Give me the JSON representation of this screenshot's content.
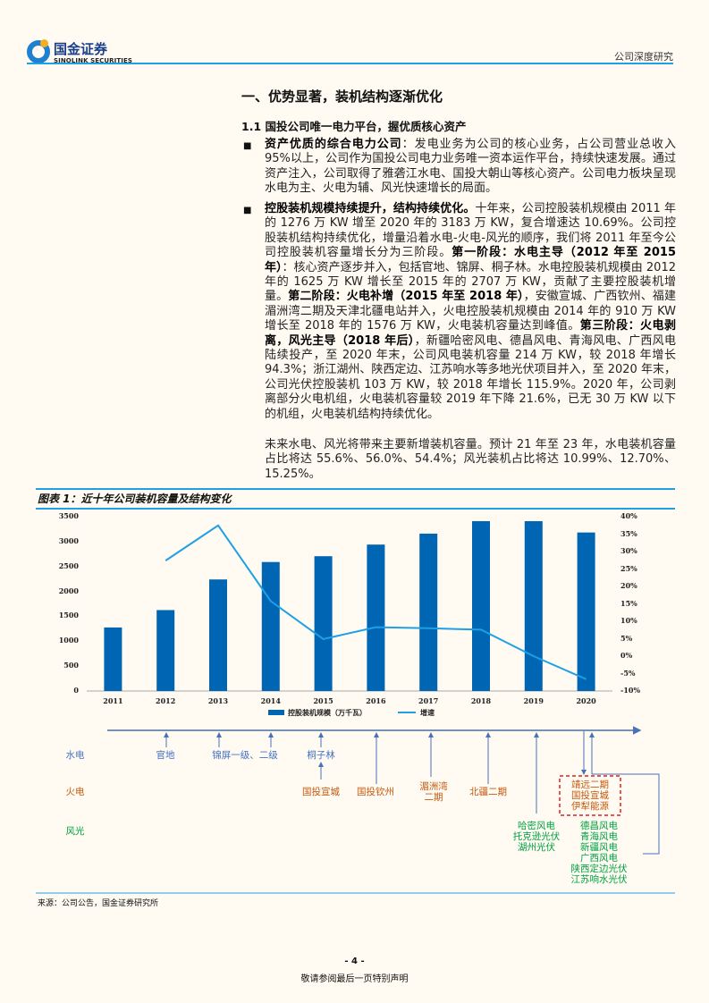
{
  "header": {
    "logo_cn": "国金证券",
    "logo_en": "SINOLINK SECURITIES",
    "right": "公司深度研究"
  },
  "section_title": "一、优势显著，装机结构逐渐优化",
  "subsection_title": "1.1 国投公司唯一电力平台，握优质核心资产",
  "bullets": [
    {
      "bold": "资产优质的综合电力公司",
      "text": "：发电业务为公司的核心业务，占公司营业总收入 95%以上，公司作为国投公司电力业务唯一资本运作平台，持续快速发展。通过资产注入，公司取得了雅砻江水电、国投大朝山等核心资产。公司电力板块呈现水电为主、火电为辅、风光快速增长的局面。"
    },
    {
      "bold": "控股装机规模持续提升，结构持续优化。",
      "t1": "十年来，公司控股装机规模由 2011 年的 1276 万 KW 增至 2020 年的 3183 万 KW，复合增速达 10.69%。公司控股装机结构持续优化，增量沿着水电-火电-风光的顺序，我们将 2011 年至今公司控股装机容量增长分为三阶段。",
      "b2": "第一阶段：水电主导（2012 年至 2015 年）",
      "t2": "：核心资产逐步并入，包括官地、锦屏、桐子林。水电控股装机规模由 2012 年的 1625 万 KW 增长至 2015 年的 2707 万 KW，贡献了主要控股装机增量。",
      "b3": "第二阶段：火电补增（2015 年至 2018 年）",
      "t3": "，安徽宣城、广西钦州、福建湄洲湾二期及天津北疆电站并入，火电控股装机规模由 2014 年的 910 万 KW 增长至 2018 年的 1576 万 KW，火电装机容量达到峰值。",
      "b4": "第三阶段：火电剥离，风光主导（2018 年后）",
      "t4": "，新疆哈密风电、德昌风电、青海风电、广西风电陆续投产，至 2020 年末，公司风电装机容量 214 万 KW，较 2018 年增长 94.3%；浙江湖州、陕西定边、江苏响水等多地光伏项目并入，至 2020 年末，公司光伏控股装机 103 万 KW，较 2018 年增长 115.9%。2020 年，公司剥离部分火电机组，火电装机容量较 2019 年下降 21.6%，已无 30 万 KW 以下的机组，火电装机结构持续优化。"
    }
  ],
  "closing_para": "未来水电、风光将带来主要新增装机容量。预计 21 年至 23 年，水电装机容量占比将达 55.6%、56.0%、54.4%；风光装机占比将达 10.99%、12.70%、15.25%。",
  "chart_caption": "图表 1：近十年公司装机容量及结构变化",
  "chart_data": {
    "type": "bar+line",
    "categories": [
      "2011",
      "2012",
      "2013",
      "2014",
      "2015",
      "2016",
      "2017",
      "2018",
      "2019",
      "2020"
    ],
    "series": [
      {
        "name": "控股装机规模（万千瓦）",
        "type": "bar",
        "axis": "left",
        "color": "#0066b3",
        "values": [
          1276,
          1625,
          2240,
          2590,
          2707,
          2940,
          3160,
          3410,
          3410,
          3183
        ]
      },
      {
        "name": "增速",
        "type": "line",
        "axis": "right",
        "color": "#1ea0e6",
        "values": [
          null,
          27.4,
          37.5,
          15.8,
          4.9,
          8.3,
          8.0,
          7.6,
          0.0,
          -6.6
        ]
      }
    ],
    "ylim_left": [
      0,
      3500
    ],
    "yticks_left": [
      "0",
      "500",
      "1000",
      "1500",
      "2000",
      "2500",
      "3000",
      "3500"
    ],
    "ylim_right": [
      -10,
      40
    ],
    "yticks_right": [
      "-10%",
      "-5%",
      "0%",
      "5%",
      "10%",
      "15%",
      "20%",
      "25%",
      "30%",
      "35%",
      "40%"
    ],
    "legend_position": "bottom",
    "grid": false
  },
  "timeline": {
    "rows": {
      "hydro": "水电",
      "thermal": "火电",
      "wind_solar": "风光"
    },
    "hydro": [
      "官地",
      "锦屏一级、二级",
      "桐子林"
    ],
    "thermal": [
      "国投宣城",
      "国投钦州",
      "湄洲湾",
      "二期",
      "北疆二期"
    ],
    "divested": [
      "靖远二期",
      "国投宣城",
      "伊犁能源"
    ],
    "wind_a": [
      "哈密风电",
      "托克逊光伏",
      "湖州光伏"
    ],
    "wind_b": [
      "德昌风电",
      "青海风电",
      "新疆风电",
      "广西风电",
      "陕西定边光伏",
      "江苏响水光伏"
    ],
    "colors": {
      "hydro": "#4472c4",
      "thermal": "#c55a11",
      "wind_solar": "#00b050",
      "divested_box": "#e02020"
    }
  },
  "source": "来源：公司公告，国金证券研究所",
  "footer": {
    "page": "- 4 -",
    "note": "敬请参阅最后一页特别声明"
  }
}
